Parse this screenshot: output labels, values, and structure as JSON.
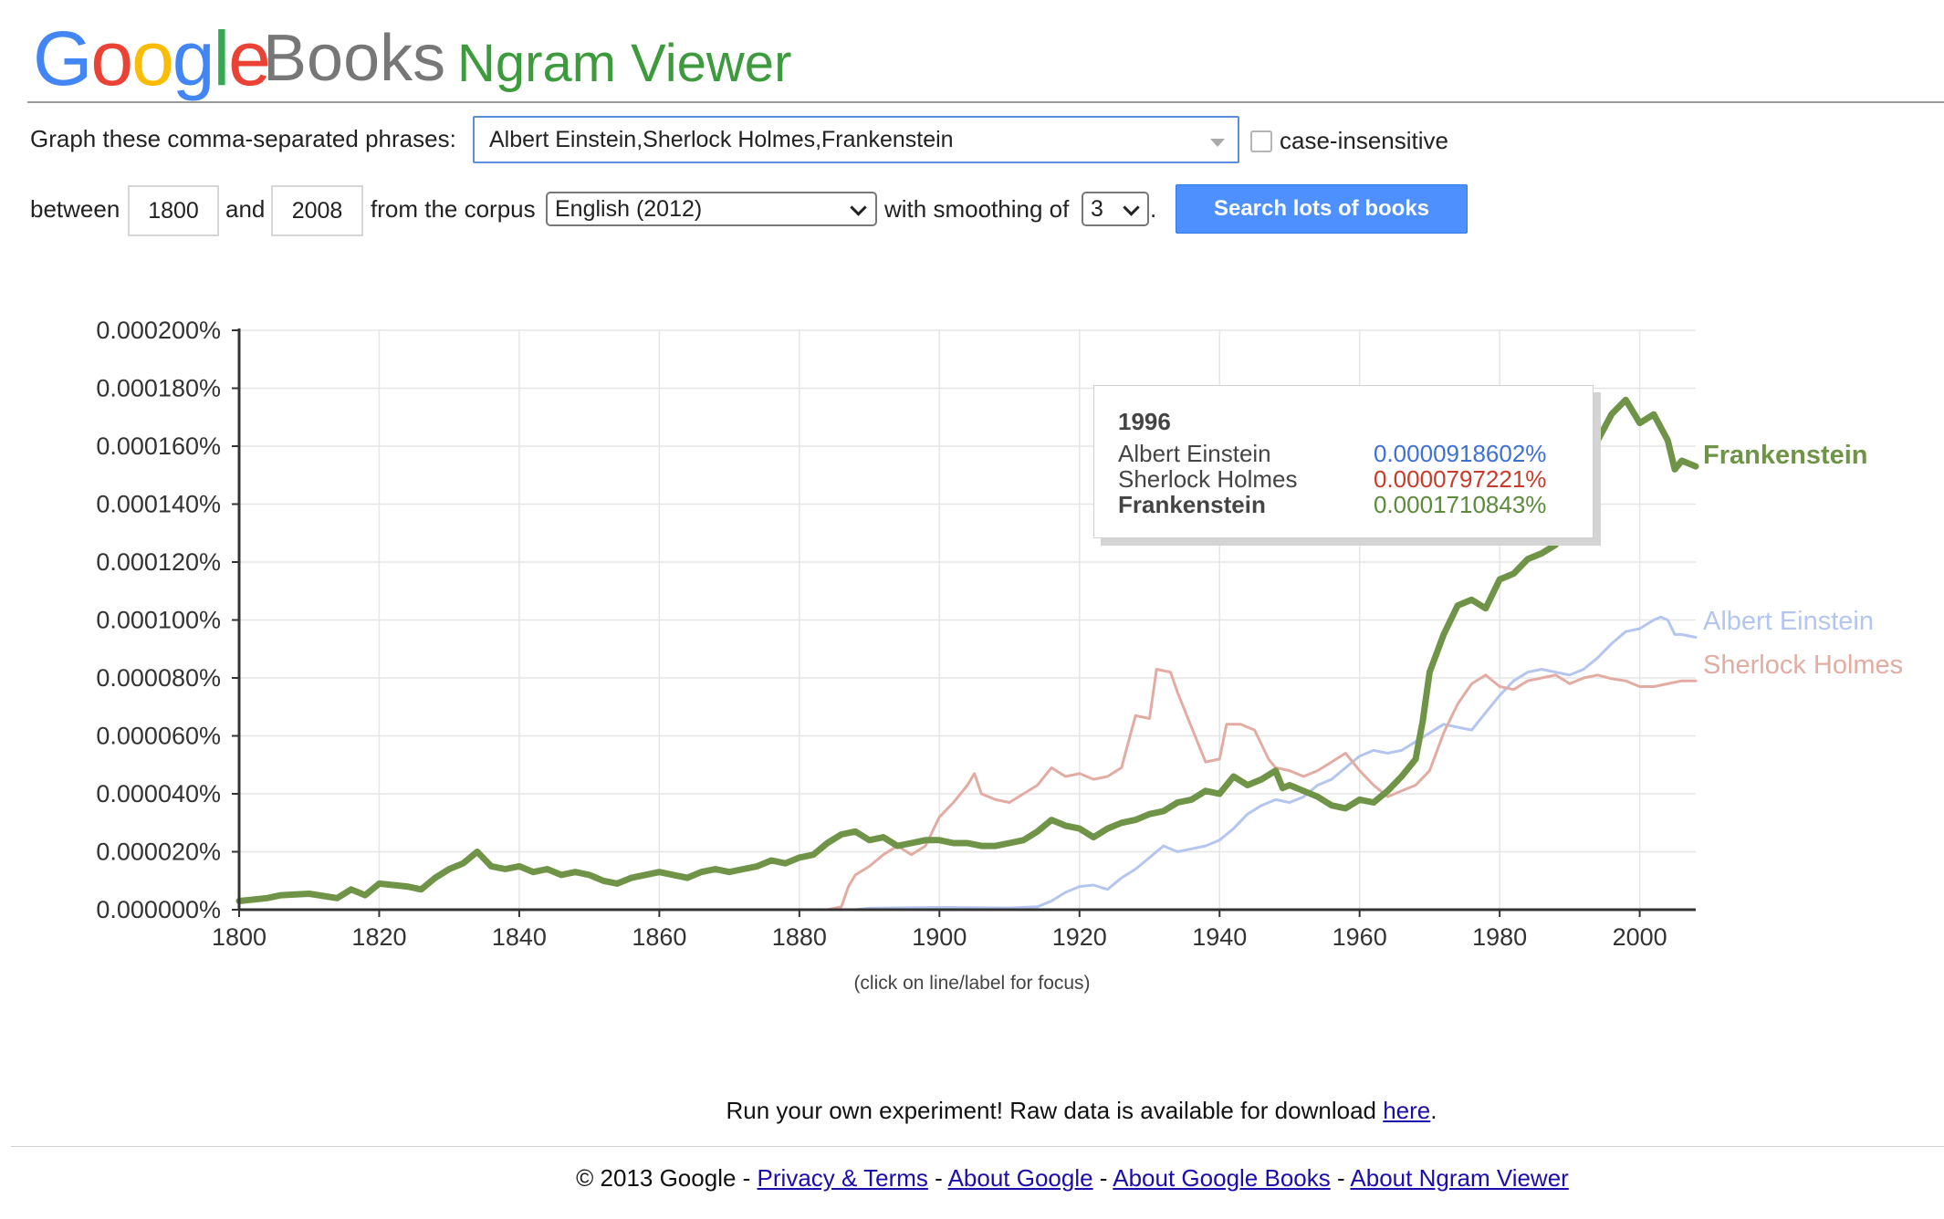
{
  "header": {
    "logo_letters": [
      {
        "ch": "G",
        "color": "#4285f4"
      },
      {
        "ch": "o",
        "color": "#ea4335"
      },
      {
        "ch": "o",
        "color": "#fbbc05"
      },
      {
        "ch": "g",
        "color": "#4285f4"
      },
      {
        "ch": "l",
        "color": "#34a853"
      },
      {
        "ch": "e",
        "color": "#ea4335"
      }
    ],
    "logo_books": "Books",
    "title": "Ngram Viewer"
  },
  "form": {
    "phrases_label": "Graph these comma-separated phrases:",
    "phrases_value": "Albert Einstein,Sherlock Holmes,Frankenstein",
    "case_insensitive_label": "case-insensitive",
    "case_insensitive_checked": false,
    "between_label": "between",
    "start_year": "1800",
    "and_label": "and",
    "end_year": "2008",
    "corpus_label": "from the corpus",
    "corpus_value": "English (2012)",
    "smoothing_label": "with smoothing of",
    "smoothing_value": "3",
    "period": ".",
    "search_button": "Search lots of books"
  },
  "chart_data": {
    "type": "line",
    "xlim": [
      1800,
      2008
    ],
    "ylim": [
      0,
      0.0002
    ],
    "y_unit": "%",
    "grid": true,
    "x_ticks": [
      1800,
      1820,
      1840,
      1860,
      1880,
      1900,
      1920,
      1940,
      1960,
      1980,
      2000
    ],
    "x_tick_labels": [
      "1800",
      "1820",
      "1840",
      "1860",
      "1880",
      "1900",
      "1920",
      "1940",
      "1960",
      "1980",
      "2000"
    ],
    "y_ticks": [
      0,
      2e-05,
      4e-05,
      6e-05,
      8e-05,
      0.0001,
      0.00012,
      0.00014,
      0.00016,
      0.00018,
      0.0002
    ],
    "y_tick_labels": [
      "0.000000%",
      "0.000020%",
      "0.000040%",
      "0.000060%",
      "0.000080%",
      "0.000100%",
      "0.000120%",
      "0.000140%",
      "0.000160%",
      "0.000180%",
      "0.000200%"
    ],
    "series": [
      {
        "name": "Albert Einstein",
        "color": "#b4c6ef",
        "width": 3,
        "points": [
          [
            1800,
            0
          ],
          [
            1880,
            0
          ],
          [
            1888,
            0
          ],
          [
            1890,
            5e-07
          ],
          [
            1900,
            8e-07
          ],
          [
            1910,
            6e-07
          ],
          [
            1914,
            1e-06
          ],
          [
            1916,
            3e-06
          ],
          [
            1918,
            6e-06
          ],
          [
            1920,
            8e-06
          ],
          [
            1922,
            8.5e-06
          ],
          [
            1924,
            7e-06
          ],
          [
            1926,
            1.1e-05
          ],
          [
            1928,
            1.4e-05
          ],
          [
            1930,
            1.8e-05
          ],
          [
            1932,
            2.2e-05
          ],
          [
            1934,
            2e-05
          ],
          [
            1936,
            2.1e-05
          ],
          [
            1938,
            2.2e-05
          ],
          [
            1940,
            2.4e-05
          ],
          [
            1942,
            2.8e-05
          ],
          [
            1944,
            3.3e-05
          ],
          [
            1946,
            3.6e-05
          ],
          [
            1948,
            3.8e-05
          ],
          [
            1950,
            3.7e-05
          ],
          [
            1952,
            3.9e-05
          ],
          [
            1954,
            4.3e-05
          ],
          [
            1956,
            4.5e-05
          ],
          [
            1958,
            4.9e-05
          ],
          [
            1960,
            5.3e-05
          ],
          [
            1962,
            5.5e-05
          ],
          [
            1964,
            5.4e-05
          ],
          [
            1966,
            5.5e-05
          ],
          [
            1968,
            5.8e-05
          ],
          [
            1970,
            6.1e-05
          ],
          [
            1972,
            6.4e-05
          ],
          [
            1974,
            6.3e-05
          ],
          [
            1976,
            6.2e-05
          ],
          [
            1978,
            6.8e-05
          ],
          [
            1980,
            7.4e-05
          ],
          [
            1982,
            7.9e-05
          ],
          [
            1984,
            8.2e-05
          ],
          [
            1986,
            8.3e-05
          ],
          [
            1988,
            8.2e-05
          ],
          [
            1990,
            8.1e-05
          ],
          [
            1992,
            8.3e-05
          ],
          [
            1994,
            8.7e-05
          ],
          [
            1996,
            9.18602e-05
          ],
          [
            1998,
            9.6e-05
          ],
          [
            2000,
            9.7e-05
          ],
          [
            2002,
            0.0001
          ],
          [
            2003,
            0.000101
          ],
          [
            2004,
            0.0001
          ],
          [
            2005,
            9.5e-05
          ],
          [
            2006,
            9.5e-05
          ],
          [
            2008,
            9.4e-05
          ]
        ]
      },
      {
        "name": "Sherlock Holmes",
        "color": "#e3aca3",
        "width": 3,
        "points": [
          [
            1800,
            0
          ],
          [
            1884,
            0
          ],
          [
            1886,
            1e-06
          ],
          [
            1887,
            8e-06
          ],
          [
            1888,
            1.2e-05
          ],
          [
            1890,
            1.5e-05
          ],
          [
            1892,
            1.9e-05
          ],
          [
            1894,
            2.2e-05
          ],
          [
            1896,
            1.9e-05
          ],
          [
            1898,
            2.2e-05
          ],
          [
            1900,
            3.2e-05
          ],
          [
            1902,
            3.7e-05
          ],
          [
            1904,
            4.3e-05
          ],
          [
            1905,
            4.7e-05
          ],
          [
            1906,
            4e-05
          ],
          [
            1908,
            3.8e-05
          ],
          [
            1910,
            3.7e-05
          ],
          [
            1912,
            4e-05
          ],
          [
            1914,
            4.3e-05
          ],
          [
            1916,
            4.9e-05
          ],
          [
            1918,
            4.6e-05
          ],
          [
            1920,
            4.7e-05
          ],
          [
            1922,
            4.5e-05
          ],
          [
            1924,
            4.6e-05
          ],
          [
            1926,
            4.9e-05
          ],
          [
            1928,
            6.7e-05
          ],
          [
            1930,
            6.6e-05
          ],
          [
            1931,
            8.3e-05
          ],
          [
            1933,
            8.2e-05
          ],
          [
            1934,
            7.5e-05
          ],
          [
            1936,
            6.3e-05
          ],
          [
            1938,
            5.1e-05
          ],
          [
            1940,
            5.2e-05
          ],
          [
            1941,
            6.4e-05
          ],
          [
            1943,
            6.4e-05
          ],
          [
            1945,
            6.2e-05
          ],
          [
            1947,
            5.2e-05
          ],
          [
            1948,
            4.9e-05
          ],
          [
            1950,
            4.8e-05
          ],
          [
            1952,
            4.6e-05
          ],
          [
            1954,
            4.8e-05
          ],
          [
            1956,
            5.1e-05
          ],
          [
            1958,
            5.4e-05
          ],
          [
            1960,
            4.8e-05
          ],
          [
            1962,
            4.3e-05
          ],
          [
            1964,
            3.9e-05
          ],
          [
            1966,
            4.1e-05
          ],
          [
            1968,
            4.3e-05
          ],
          [
            1970,
            4.8e-05
          ],
          [
            1972,
            6.1e-05
          ],
          [
            1974,
            7.1e-05
          ],
          [
            1976,
            7.8e-05
          ],
          [
            1978,
            8.1e-05
          ],
          [
            1980,
            7.7e-05
          ],
          [
            1982,
            7.6e-05
          ],
          [
            1984,
            7.9e-05
          ],
          [
            1986,
            8e-05
          ],
          [
            1988,
            8.1e-05
          ],
          [
            1990,
            7.8e-05
          ],
          [
            1992,
            8e-05
          ],
          [
            1994,
            8.1e-05
          ],
          [
            1996,
            7.97221e-05
          ],
          [
            1998,
            7.9e-05
          ],
          [
            2000,
            7.7e-05
          ],
          [
            2002,
            7.7e-05
          ],
          [
            2004,
            7.8e-05
          ],
          [
            2006,
            7.9e-05
          ],
          [
            2008,
            7.9e-05
          ]
        ]
      },
      {
        "name": "Frankenstein",
        "color": "#6f9447",
        "width": 7,
        "points": [
          [
            1800,
            3e-06
          ],
          [
            1804,
            4e-06
          ],
          [
            1806,
            5e-06
          ],
          [
            1810,
            5.5e-06
          ],
          [
            1814,
            4e-06
          ],
          [
            1816,
            7e-06
          ],
          [
            1818,
            5e-06
          ],
          [
            1820,
            9e-06
          ],
          [
            1824,
            8e-06
          ],
          [
            1826,
            7e-06
          ],
          [
            1828,
            1.1e-05
          ],
          [
            1830,
            1.4e-05
          ],
          [
            1832,
            1.6e-05
          ],
          [
            1834,
            2e-05
          ],
          [
            1836,
            1.5e-05
          ],
          [
            1838,
            1.4e-05
          ],
          [
            1840,
            1.5e-05
          ],
          [
            1842,
            1.3e-05
          ],
          [
            1844,
            1.4e-05
          ],
          [
            1846,
            1.2e-05
          ],
          [
            1848,
            1.3e-05
          ],
          [
            1850,
            1.2e-05
          ],
          [
            1852,
            1e-05
          ],
          [
            1854,
            9e-06
          ],
          [
            1856,
            1.1e-05
          ],
          [
            1858,
            1.2e-05
          ],
          [
            1860,
            1.3e-05
          ],
          [
            1862,
            1.2e-05
          ],
          [
            1864,
            1.1e-05
          ],
          [
            1866,
            1.3e-05
          ],
          [
            1868,
            1.4e-05
          ],
          [
            1870,
            1.3e-05
          ],
          [
            1872,
            1.4e-05
          ],
          [
            1874,
            1.5e-05
          ],
          [
            1876,
            1.7e-05
          ],
          [
            1878,
            1.6e-05
          ],
          [
            1880,
            1.8e-05
          ],
          [
            1882,
            1.9e-05
          ],
          [
            1884,
            2.3e-05
          ],
          [
            1886,
            2.6e-05
          ],
          [
            1888,
            2.7e-05
          ],
          [
            1890,
            2.4e-05
          ],
          [
            1892,
            2.5e-05
          ],
          [
            1894,
            2.2e-05
          ],
          [
            1896,
            2.3e-05
          ],
          [
            1898,
            2.4e-05
          ],
          [
            1900,
            2.4e-05
          ],
          [
            1902,
            2.3e-05
          ],
          [
            1904,
            2.3e-05
          ],
          [
            1906,
            2.2e-05
          ],
          [
            1908,
            2.2e-05
          ],
          [
            1910,
            2.3e-05
          ],
          [
            1912,
            2.4e-05
          ],
          [
            1914,
            2.7e-05
          ],
          [
            1916,
            3.1e-05
          ],
          [
            1918,
            2.9e-05
          ],
          [
            1920,
            2.8e-05
          ],
          [
            1922,
            2.5e-05
          ],
          [
            1924,
            2.8e-05
          ],
          [
            1926,
            3e-05
          ],
          [
            1928,
            3.1e-05
          ],
          [
            1930,
            3.3e-05
          ],
          [
            1932,
            3.4e-05
          ],
          [
            1934,
            3.7e-05
          ],
          [
            1936,
            3.8e-05
          ],
          [
            1938,
            4.1e-05
          ],
          [
            1940,
            4e-05
          ],
          [
            1942,
            4.6e-05
          ],
          [
            1944,
            4.3e-05
          ],
          [
            1946,
            4.5e-05
          ],
          [
            1948,
            4.8e-05
          ],
          [
            1949,
            4.2e-05
          ],
          [
            1950,
            4.3e-05
          ],
          [
            1952,
            4.1e-05
          ],
          [
            1954,
            3.9e-05
          ],
          [
            1956,
            3.6e-05
          ],
          [
            1958,
            3.5e-05
          ],
          [
            1960,
            3.8e-05
          ],
          [
            1962,
            3.7e-05
          ],
          [
            1964,
            4.1e-05
          ],
          [
            1966,
            4.6e-05
          ],
          [
            1968,
            5.2e-05
          ],
          [
            1969,
            6.5e-05
          ],
          [
            1970,
            8.2e-05
          ],
          [
            1972,
            9.5e-05
          ],
          [
            1974,
            0.000105
          ],
          [
            1976,
            0.000107
          ],
          [
            1978,
            0.000104
          ],
          [
            1980,
            0.000114
          ],
          [
            1982,
            0.000116
          ],
          [
            1984,
            0.000121
          ],
          [
            1986,
            0.000123
          ],
          [
            1988,
            0.000126
          ],
          [
            1990,
            0.000135
          ],
          [
            1992,
            0.00015
          ],
          [
            1994,
            0.000162
          ],
          [
            1996,
            0.0001710843
          ],
          [
            1998,
            0.000176
          ],
          [
            2000,
            0.000168
          ],
          [
            2002,
            0.000171
          ],
          [
            2004,
            0.000162
          ],
          [
            2005,
            0.000152
          ],
          [
            2006,
            0.000155
          ],
          [
            2008,
            0.000153
          ]
        ]
      }
    ]
  },
  "tooltip": {
    "year": "1996",
    "rows": [
      {
        "name": "Albert Einstein",
        "value": "0.0000918602%",
        "color": "#3d6fd9",
        "bold": false
      },
      {
        "name": "Sherlock Holmes",
        "value": "0.0000797221%",
        "color": "#c83a2a",
        "bold": false
      },
      {
        "name": "Frankenstein",
        "value": "0.0001710843%",
        "color": "#5a8a3a",
        "bold": true
      }
    ]
  },
  "click_hint": "(click on line/label for focus)",
  "raw_data": {
    "text": "Run your own experiment! Raw data is available for download ",
    "link": "here",
    "end": "."
  },
  "footer": {
    "copyright": "© 2013 Google",
    "sep": " - ",
    "links": [
      "Privacy & Terms",
      "About Google",
      "About Google Books",
      "About Ngram Viewer"
    ]
  }
}
